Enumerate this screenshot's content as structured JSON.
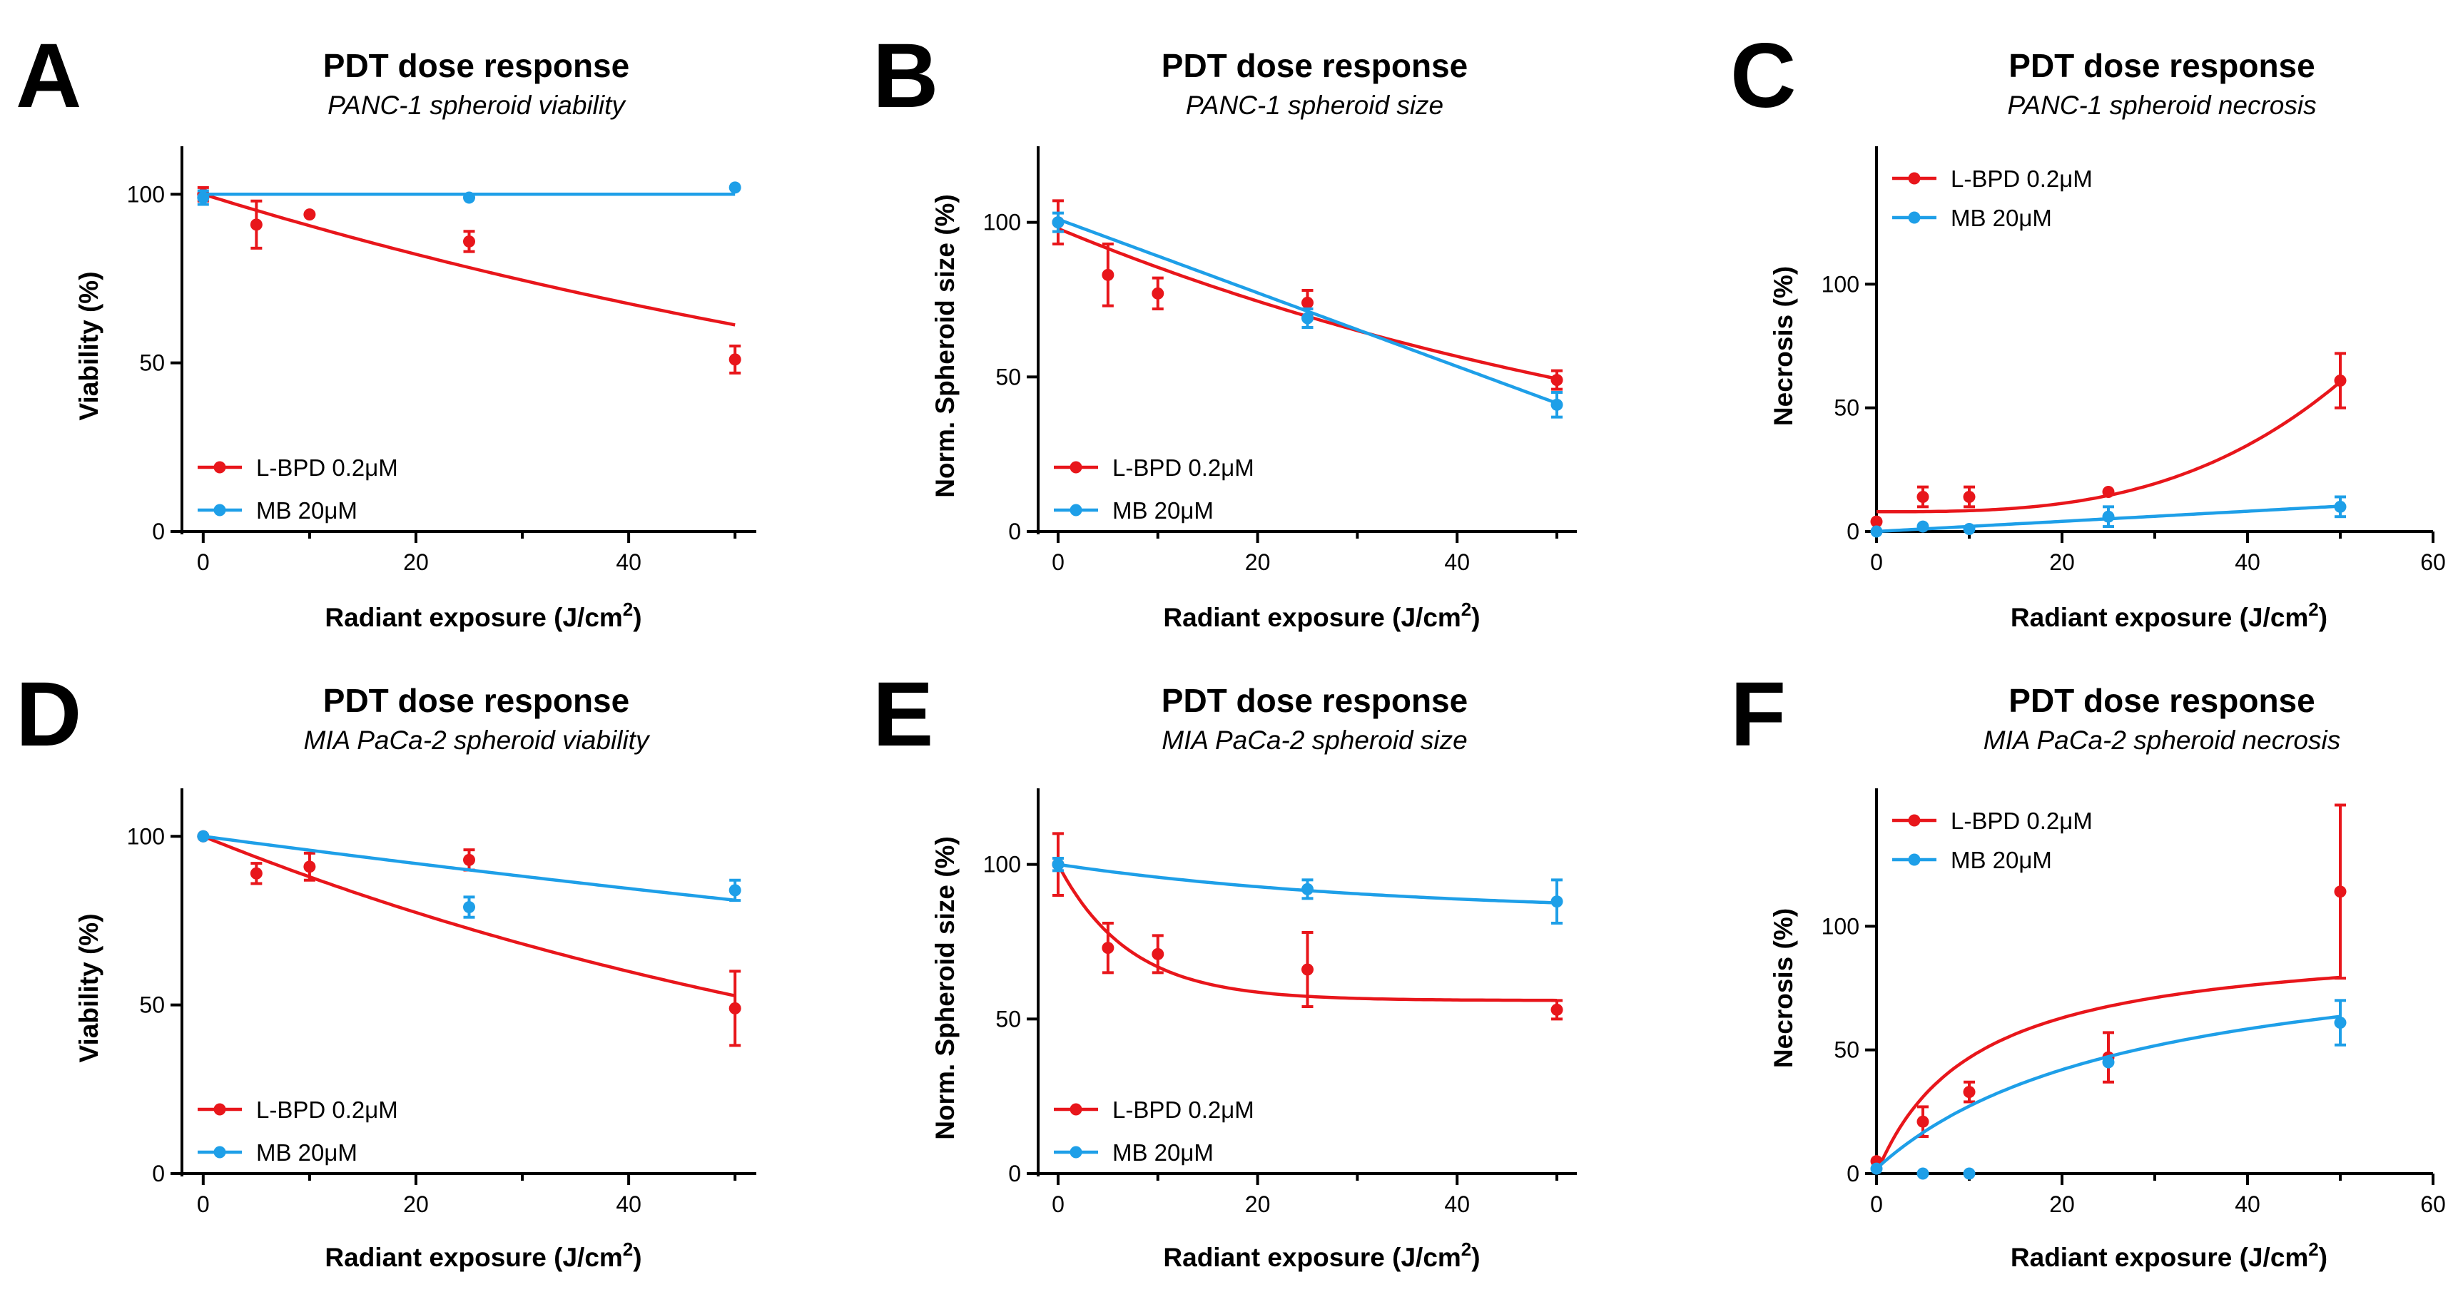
{
  "colors": {
    "lbpd": "#e8161b",
    "mb": "#1e9fe8"
  },
  "chart_data": [
    {
      "type": "line",
      "panel": "A",
      "title": "PDT dose response",
      "subtitle": "PANC-1 spheroid viability",
      "xlabel": "Radiant exposure (J/cm",
      "xlabel_sup": "2",
      "xlabel_close": ")",
      "ylabel": "Viability (%)",
      "xlim": [
        -2,
        52
      ],
      "ylim": [
        0,
        110
      ],
      "xticks": [
        0,
        20,
        40
      ],
      "yticks": [
        0,
        50,
        100
      ],
      "xticks_minor": [
        10,
        30,
        50
      ],
      "yticks_minor": [],
      "legend_pos": "bottom-left",
      "series": [
        {
          "name": "L-BPD 0.2μM",
          "color_key": "lbpd",
          "x": [
            0,
            5,
            10,
            25,
            50
          ],
          "y": [
            100,
            91,
            94,
            86,
            51
          ],
          "err": [
            2,
            7,
            0,
            3,
            4
          ],
          "fit": {
            "model": "exp",
            "a": 100,
            "k": 0.0098
          }
        },
        {
          "name": "MB 20μM",
          "color_key": "mb",
          "x": [
            0,
            25,
            50
          ],
          "y": [
            99,
            99,
            102
          ],
          "err": [
            2,
            0,
            0
          ],
          "fit": {
            "model": "const",
            "c": 100
          }
        }
      ]
    },
    {
      "type": "line",
      "panel": "B",
      "title": "PDT dose response",
      "subtitle": "PANC-1 spheroid size",
      "xlabel": "Radiant exposure (J/cm",
      "xlabel_sup": "2",
      "xlabel_close": ")",
      "ylabel": "Norm. Spheroid size (%)",
      "xlim": [
        -2,
        52
      ],
      "ylim": [
        0,
        120
      ],
      "xticks": [
        0,
        20,
        40
      ],
      "yticks": [
        0,
        50,
        100
      ],
      "xticks_minor": [
        10,
        30,
        50
      ],
      "yticks_minor": [],
      "legend_pos": "bottom-left",
      "series": [
        {
          "name": "L-BPD 0.2μM",
          "color_key": "lbpd",
          "x": [
            0,
            5,
            10,
            25,
            50
          ],
          "y": [
            100,
            83,
            77,
            74,
            49
          ],
          "err": [
            7,
            10,
            5,
            4,
            3
          ],
          "fit": {
            "model": "exp",
            "a": 98,
            "k": 0.0137
          }
        },
        {
          "name": "MB 20μM",
          "color_key": "mb",
          "x": [
            0,
            25,
            50
          ],
          "y": [
            100,
            69,
            41
          ],
          "err": [
            3,
            3,
            4
          ],
          "fit": {
            "model": "linear",
            "a": 101,
            "b": -1.19
          }
        }
      ]
    },
    {
      "type": "line",
      "panel": "C",
      "title": "PDT dose response",
      "subtitle": "PANC-1 spheroid necrosis",
      "xlabel": "Radiant exposure (J/cm",
      "xlabel_sup": "2",
      "xlabel_close": ")",
      "ylabel": "Necrosis (%)",
      "xlim": [
        0,
        60
      ],
      "ylim": [
        0,
        150
      ],
      "xticks": [
        0,
        20,
        40,
        60
      ],
      "yticks": [
        0,
        50,
        100
      ],
      "xticks_minor": [
        10,
        30,
        50
      ],
      "yticks_minor": [],
      "legend_pos": "top-left",
      "series": [
        {
          "name": "L-BPD 0.2μM",
          "color_key": "lbpd",
          "x": [
            0,
            5,
            10,
            25,
            50
          ],
          "y": [
            4,
            14,
            14,
            16,
            61
          ],
          "err": [
            0,
            4,
            4,
            0,
            11
          ],
          "fit": {
            "model": "poly3",
            "c0": 8,
            "c3": 0.00042
          }
        },
        {
          "name": "MB 20μM",
          "color_key": "mb",
          "x": [
            0,
            5,
            10,
            25,
            50
          ],
          "y": [
            0,
            2,
            1,
            6,
            10
          ],
          "err": [
            0,
            0,
            0,
            4,
            4
          ],
          "fit": {
            "model": "linear",
            "a": 0,
            "b": 0.205
          }
        }
      ]
    },
    {
      "type": "line",
      "panel": "D",
      "title": "PDT dose response",
      "subtitle": "MIA PaCa-2 spheroid viability",
      "xlabel": "Radiant exposure (J/cm",
      "xlabel_sup": "2",
      "xlabel_close": ")",
      "ylabel": "Viability (%)",
      "xlim": [
        -2,
        52
      ],
      "ylim": [
        0,
        110
      ],
      "xticks": [
        0,
        20,
        40
      ],
      "yticks": [
        0,
        50,
        100
      ],
      "xticks_minor": [
        10,
        30,
        50
      ],
      "yticks_minor": [],
      "legend_pos": "bottom-left",
      "series": [
        {
          "name": "L-BPD 0.2μM",
          "color_key": "lbpd",
          "x": [
            0,
            5,
            10,
            25,
            50
          ],
          "y": [
            100,
            89,
            91,
            93,
            49
          ],
          "err": [
            0,
            3,
            4,
            3,
            11
          ],
          "fit": {
            "model": "exp",
            "a": 100,
            "k": 0.0128
          }
        },
        {
          "name": "MB 20μM",
          "color_key": "mb",
          "x": [
            0,
            25,
            50
          ],
          "y": [
            100,
            79,
            84
          ],
          "err": [
            0,
            3,
            3
          ],
          "fit": {
            "model": "exp",
            "a": 100,
            "k": 0.0042
          }
        }
      ]
    },
    {
      "type": "line",
      "panel": "E",
      "title": "PDT dose response",
      "subtitle": "MIA PaCa-2 spheroid size",
      "xlabel": "Radiant exposure (J/cm",
      "xlabel_sup": "2",
      "xlabel_close": ")",
      "ylabel": "Norm. Spheroid size (%)",
      "xlim": [
        -2,
        52
      ],
      "ylim": [
        0,
        120
      ],
      "xticks": [
        0,
        20,
        40
      ],
      "yticks": [
        0,
        50,
        100
      ],
      "xticks_minor": [
        10,
        30,
        50
      ],
      "yticks_minor": [],
      "legend_pos": "bottom-left",
      "series": [
        {
          "name": "L-BPD 0.2μM",
          "color_key": "lbpd",
          "x": [
            0,
            5,
            10,
            25,
            50
          ],
          "y": [
            100,
            73,
            71,
            66,
            53
          ],
          "err": [
            10,
            8,
            6,
            12,
            3
          ],
          "fit": {
            "model": "expplateau",
            "plateau": 56,
            "span": 44,
            "k": 0.14
          }
        },
        {
          "name": "MB 20μM",
          "color_key": "mb",
          "x": [
            0,
            25,
            50
          ],
          "y": [
            100,
            92,
            88
          ],
          "err": [
            2,
            3,
            7
          ],
          "fit": {
            "model": "expplateau",
            "plateau": 84,
            "span": 16,
            "k": 0.03
          }
        }
      ]
    },
    {
      "type": "line",
      "panel": "F",
      "title": "PDT dose response",
      "subtitle": "MIA PaCa-2 spheroid necrosis",
      "xlabel": "Radiant exposure (J/cm",
      "xlabel_sup": "2",
      "xlabel_close": ")",
      "ylabel": "Necrosis (%)",
      "xlim": [
        0,
        60
      ],
      "ylim": [
        0,
        150
      ],
      "xticks": [
        0,
        20,
        40,
        60
      ],
      "yticks": [
        0,
        50,
        100
      ],
      "xticks_minor": [
        10,
        30,
        50
      ],
      "yticks_minor": [],
      "legend_pos": "top-left",
      "series": [
        {
          "name": "L-BPD 0.2μM",
          "color_key": "lbpd",
          "x": [
            0,
            5,
            10,
            25,
            50
          ],
          "y": [
            5,
            21,
            33,
            47,
            114
          ],
          "err": [
            0,
            6,
            4,
            10,
            35
          ],
          "fit": {
            "model": "hyper",
            "vmax": 96,
            "km": 10.5,
            "c0": 0
          }
        },
        {
          "name": "MB 20μM",
          "color_key": "mb",
          "x": [
            0,
            5,
            10,
            25,
            50
          ],
          "y": [
            2,
            0,
            0,
            45,
            61
          ],
          "err": [
            0,
            0,
            0,
            0,
            9
          ],
          "fit": {
            "model": "hyper",
            "vmax": 96,
            "km": 28,
            "c0": 2
          }
        }
      ]
    }
  ]
}
